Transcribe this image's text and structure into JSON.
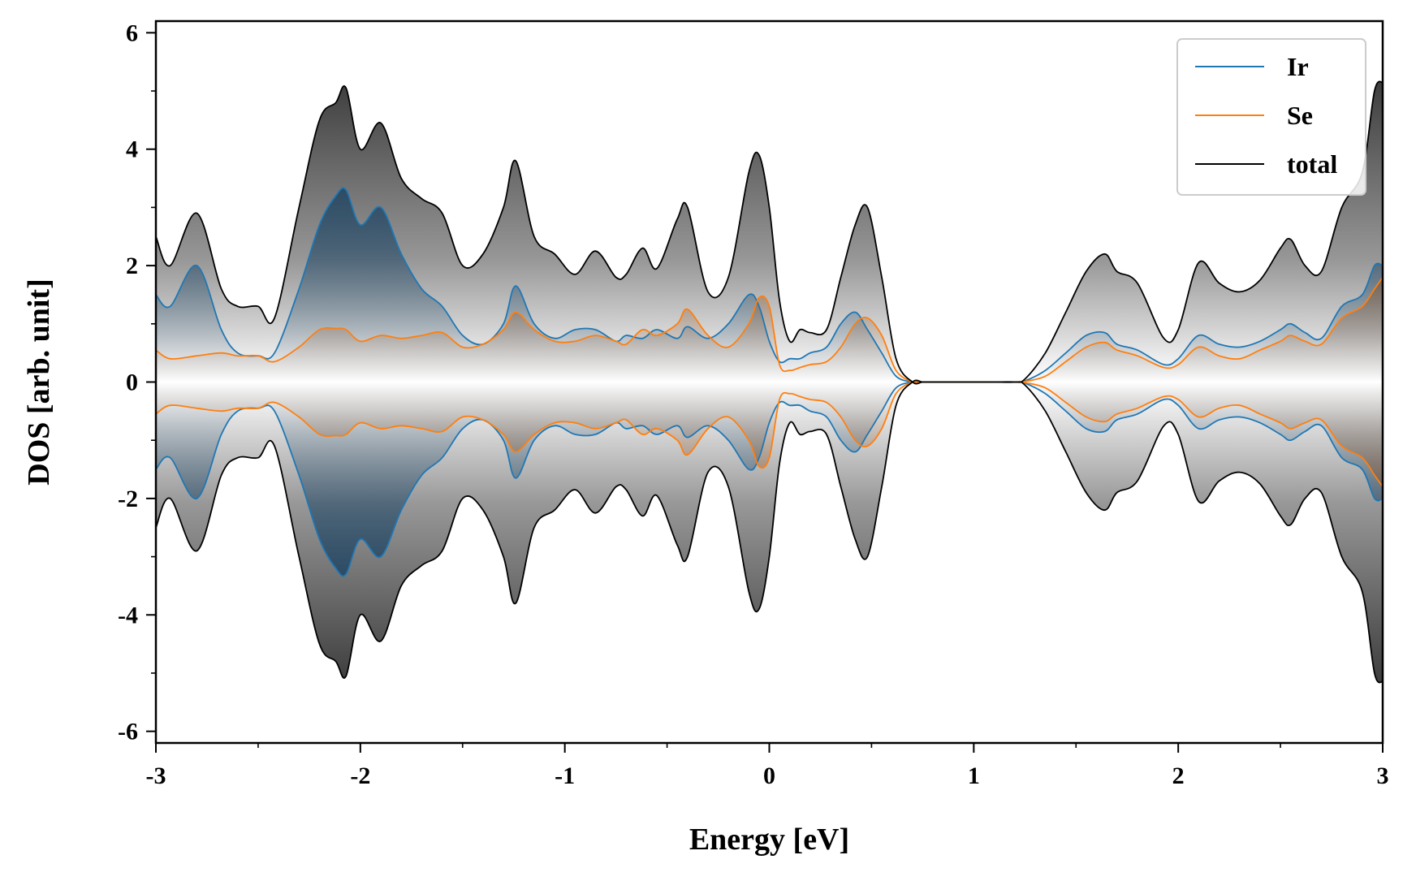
{
  "chart_data": {
    "type": "area",
    "title": "",
    "xlabel": "Energy [eV]",
    "ylabel": "DOS [arb. unit]",
    "xlim": [
      -3,
      3
    ],
    "ylim": [
      -6.2,
      6.2
    ],
    "mirrored": true,
    "xticks": [
      -3,
      -2,
      -1,
      0,
      1,
      2,
      3
    ],
    "xtick_labels": [
      "-3",
      "-2",
      "-1",
      "0",
      "1",
      "2",
      "3"
    ],
    "yticks": [
      -6,
      -4,
      -2,
      0,
      2,
      4,
      6
    ],
    "ytick_labels": [
      "-6",
      "-4",
      "-2",
      "0",
      "2",
      "4",
      "6"
    ],
    "grid": false,
    "legend_position": "top-right",
    "series": [
      {
        "name": "Ir",
        "color": "#1f77b4",
        "fill_color": "#0d3a5e",
        "x": [
          -3.0,
          -2.93,
          -2.8,
          -2.68,
          -2.6,
          -2.5,
          -2.42,
          -2.3,
          -2.2,
          -2.12,
          -2.07,
          -2.0,
          -1.9,
          -1.8,
          -1.7,
          -1.6,
          -1.5,
          -1.4,
          -1.3,
          -1.24,
          -1.15,
          -1.05,
          -0.95,
          -0.85,
          -0.75,
          -0.7,
          -0.62,
          -0.55,
          -0.45,
          -0.4,
          -0.3,
          -0.2,
          -0.1,
          -0.05,
          0.0,
          0.05,
          0.1,
          0.15,
          0.2,
          0.28,
          0.35,
          0.42,
          0.48,
          0.55,
          0.62,
          0.7,
          0.75,
          0.8,
          0.9,
          1.0,
          1.1,
          1.2,
          1.25,
          1.35,
          1.45,
          1.55,
          1.64,
          1.7,
          1.8,
          1.93,
          2.0,
          2.1,
          2.2,
          2.3,
          2.4,
          2.5,
          2.55,
          2.62,
          2.7,
          2.8,
          2.9,
          2.96,
          3.0
        ],
        "values": [
          1.5,
          1.3,
          2.0,
          0.9,
          0.5,
          0.45,
          0.5,
          1.6,
          2.7,
          3.2,
          3.3,
          2.7,
          3.0,
          2.2,
          1.6,
          1.3,
          0.8,
          0.65,
          1.0,
          1.65,
          1.0,
          0.75,
          0.9,
          0.9,
          0.7,
          0.8,
          0.75,
          0.9,
          0.75,
          0.95,
          0.75,
          1.0,
          1.5,
          1.3,
          0.7,
          0.35,
          0.4,
          0.4,
          0.5,
          0.6,
          1.0,
          1.2,
          0.9,
          0.5,
          0.1,
          0.0,
          0.0,
          0.0,
          0.0,
          0.0,
          0.0,
          0.0,
          0.02,
          0.2,
          0.5,
          0.8,
          0.85,
          0.65,
          0.55,
          0.3,
          0.4,
          0.8,
          0.65,
          0.6,
          0.7,
          0.9,
          1.0,
          0.85,
          0.75,
          1.3,
          1.5,
          2.0,
          2.0
        ]
      },
      {
        "name": "Se",
        "color": "#ff7f0e",
        "fill_color": "#8a4a1a",
        "x": [
          -3.0,
          -2.93,
          -2.8,
          -2.68,
          -2.6,
          -2.5,
          -2.42,
          -2.3,
          -2.2,
          -2.12,
          -2.07,
          -2.0,
          -1.9,
          -1.8,
          -1.7,
          -1.6,
          -1.5,
          -1.4,
          -1.3,
          -1.24,
          -1.15,
          -1.05,
          -0.95,
          -0.85,
          -0.75,
          -0.7,
          -0.62,
          -0.55,
          -0.45,
          -0.4,
          -0.3,
          -0.2,
          -0.1,
          -0.05,
          0.0,
          0.05,
          0.1,
          0.15,
          0.2,
          0.28,
          0.35,
          0.42,
          0.48,
          0.55,
          0.62,
          0.7,
          0.75,
          0.8,
          0.9,
          1.0,
          1.1,
          1.2,
          1.25,
          1.35,
          1.45,
          1.55,
          1.64,
          1.7,
          1.8,
          1.93,
          2.0,
          2.1,
          2.2,
          2.3,
          2.4,
          2.5,
          2.55,
          2.62,
          2.7,
          2.8,
          2.9,
          2.96,
          3.0
        ],
        "values": [
          0.55,
          0.4,
          0.45,
          0.5,
          0.45,
          0.45,
          0.35,
          0.6,
          0.9,
          0.92,
          0.9,
          0.7,
          0.8,
          0.75,
          0.8,
          0.85,
          0.6,
          0.65,
          0.9,
          1.2,
          0.9,
          0.7,
          0.7,
          0.8,
          0.7,
          0.65,
          0.9,
          0.8,
          1.0,
          1.25,
          0.8,
          0.6,
          1.0,
          1.45,
          1.3,
          0.3,
          0.2,
          0.25,
          0.3,
          0.35,
          0.6,
          1.0,
          1.1,
          0.8,
          0.2,
          0.0,
          0.0,
          0.0,
          0.0,
          0.0,
          0.0,
          0.0,
          0.01,
          0.1,
          0.35,
          0.6,
          0.68,
          0.55,
          0.45,
          0.25,
          0.3,
          0.6,
          0.45,
          0.4,
          0.55,
          0.7,
          0.8,
          0.7,
          0.65,
          1.1,
          1.3,
          1.6,
          1.8
        ]
      },
      {
        "name": "total",
        "color": "#000000",
        "fill_color": "#1a1a1a",
        "x": [
          -3.0,
          -2.93,
          -2.8,
          -2.68,
          -2.6,
          -2.5,
          -2.42,
          -2.3,
          -2.2,
          -2.12,
          -2.07,
          -2.0,
          -1.9,
          -1.8,
          -1.7,
          -1.6,
          -1.5,
          -1.4,
          -1.3,
          -1.24,
          -1.15,
          -1.05,
          -0.95,
          -0.85,
          -0.75,
          -0.7,
          -0.62,
          -0.55,
          -0.45,
          -0.4,
          -0.3,
          -0.2,
          -0.1,
          -0.05,
          0.0,
          0.05,
          0.1,
          0.15,
          0.2,
          0.28,
          0.35,
          0.42,
          0.48,
          0.55,
          0.62,
          0.7,
          0.75,
          0.8,
          0.9,
          1.0,
          1.1,
          1.2,
          1.25,
          1.35,
          1.45,
          1.55,
          1.64,
          1.7,
          1.8,
          1.93,
          2.0,
          2.1,
          2.2,
          2.3,
          2.4,
          2.5,
          2.55,
          2.62,
          2.7,
          2.8,
          2.9,
          2.96,
          3.0
        ],
        "values": [
          2.5,
          2.0,
          2.9,
          1.6,
          1.3,
          1.3,
          1.1,
          3.0,
          4.5,
          4.8,
          5.05,
          4.0,
          4.45,
          3.5,
          3.15,
          2.9,
          2.0,
          2.2,
          3.0,
          3.8,
          2.5,
          2.2,
          1.85,
          2.25,
          1.8,
          1.85,
          2.3,
          1.95,
          2.8,
          3.0,
          1.55,
          1.8,
          3.6,
          3.9,
          3.0,
          1.4,
          0.7,
          0.9,
          0.85,
          0.9,
          1.8,
          2.7,
          3.0,
          1.8,
          0.4,
          0.0,
          0.0,
          0.0,
          0.0,
          0.0,
          0.0,
          0.0,
          0.05,
          0.5,
          1.2,
          1.9,
          2.2,
          1.9,
          1.7,
          0.75,
          0.9,
          2.05,
          1.7,
          1.55,
          1.75,
          2.3,
          2.45,
          2.0,
          1.9,
          3.0,
          3.6,
          5.0,
          5.15
        ]
      }
    ]
  }
}
